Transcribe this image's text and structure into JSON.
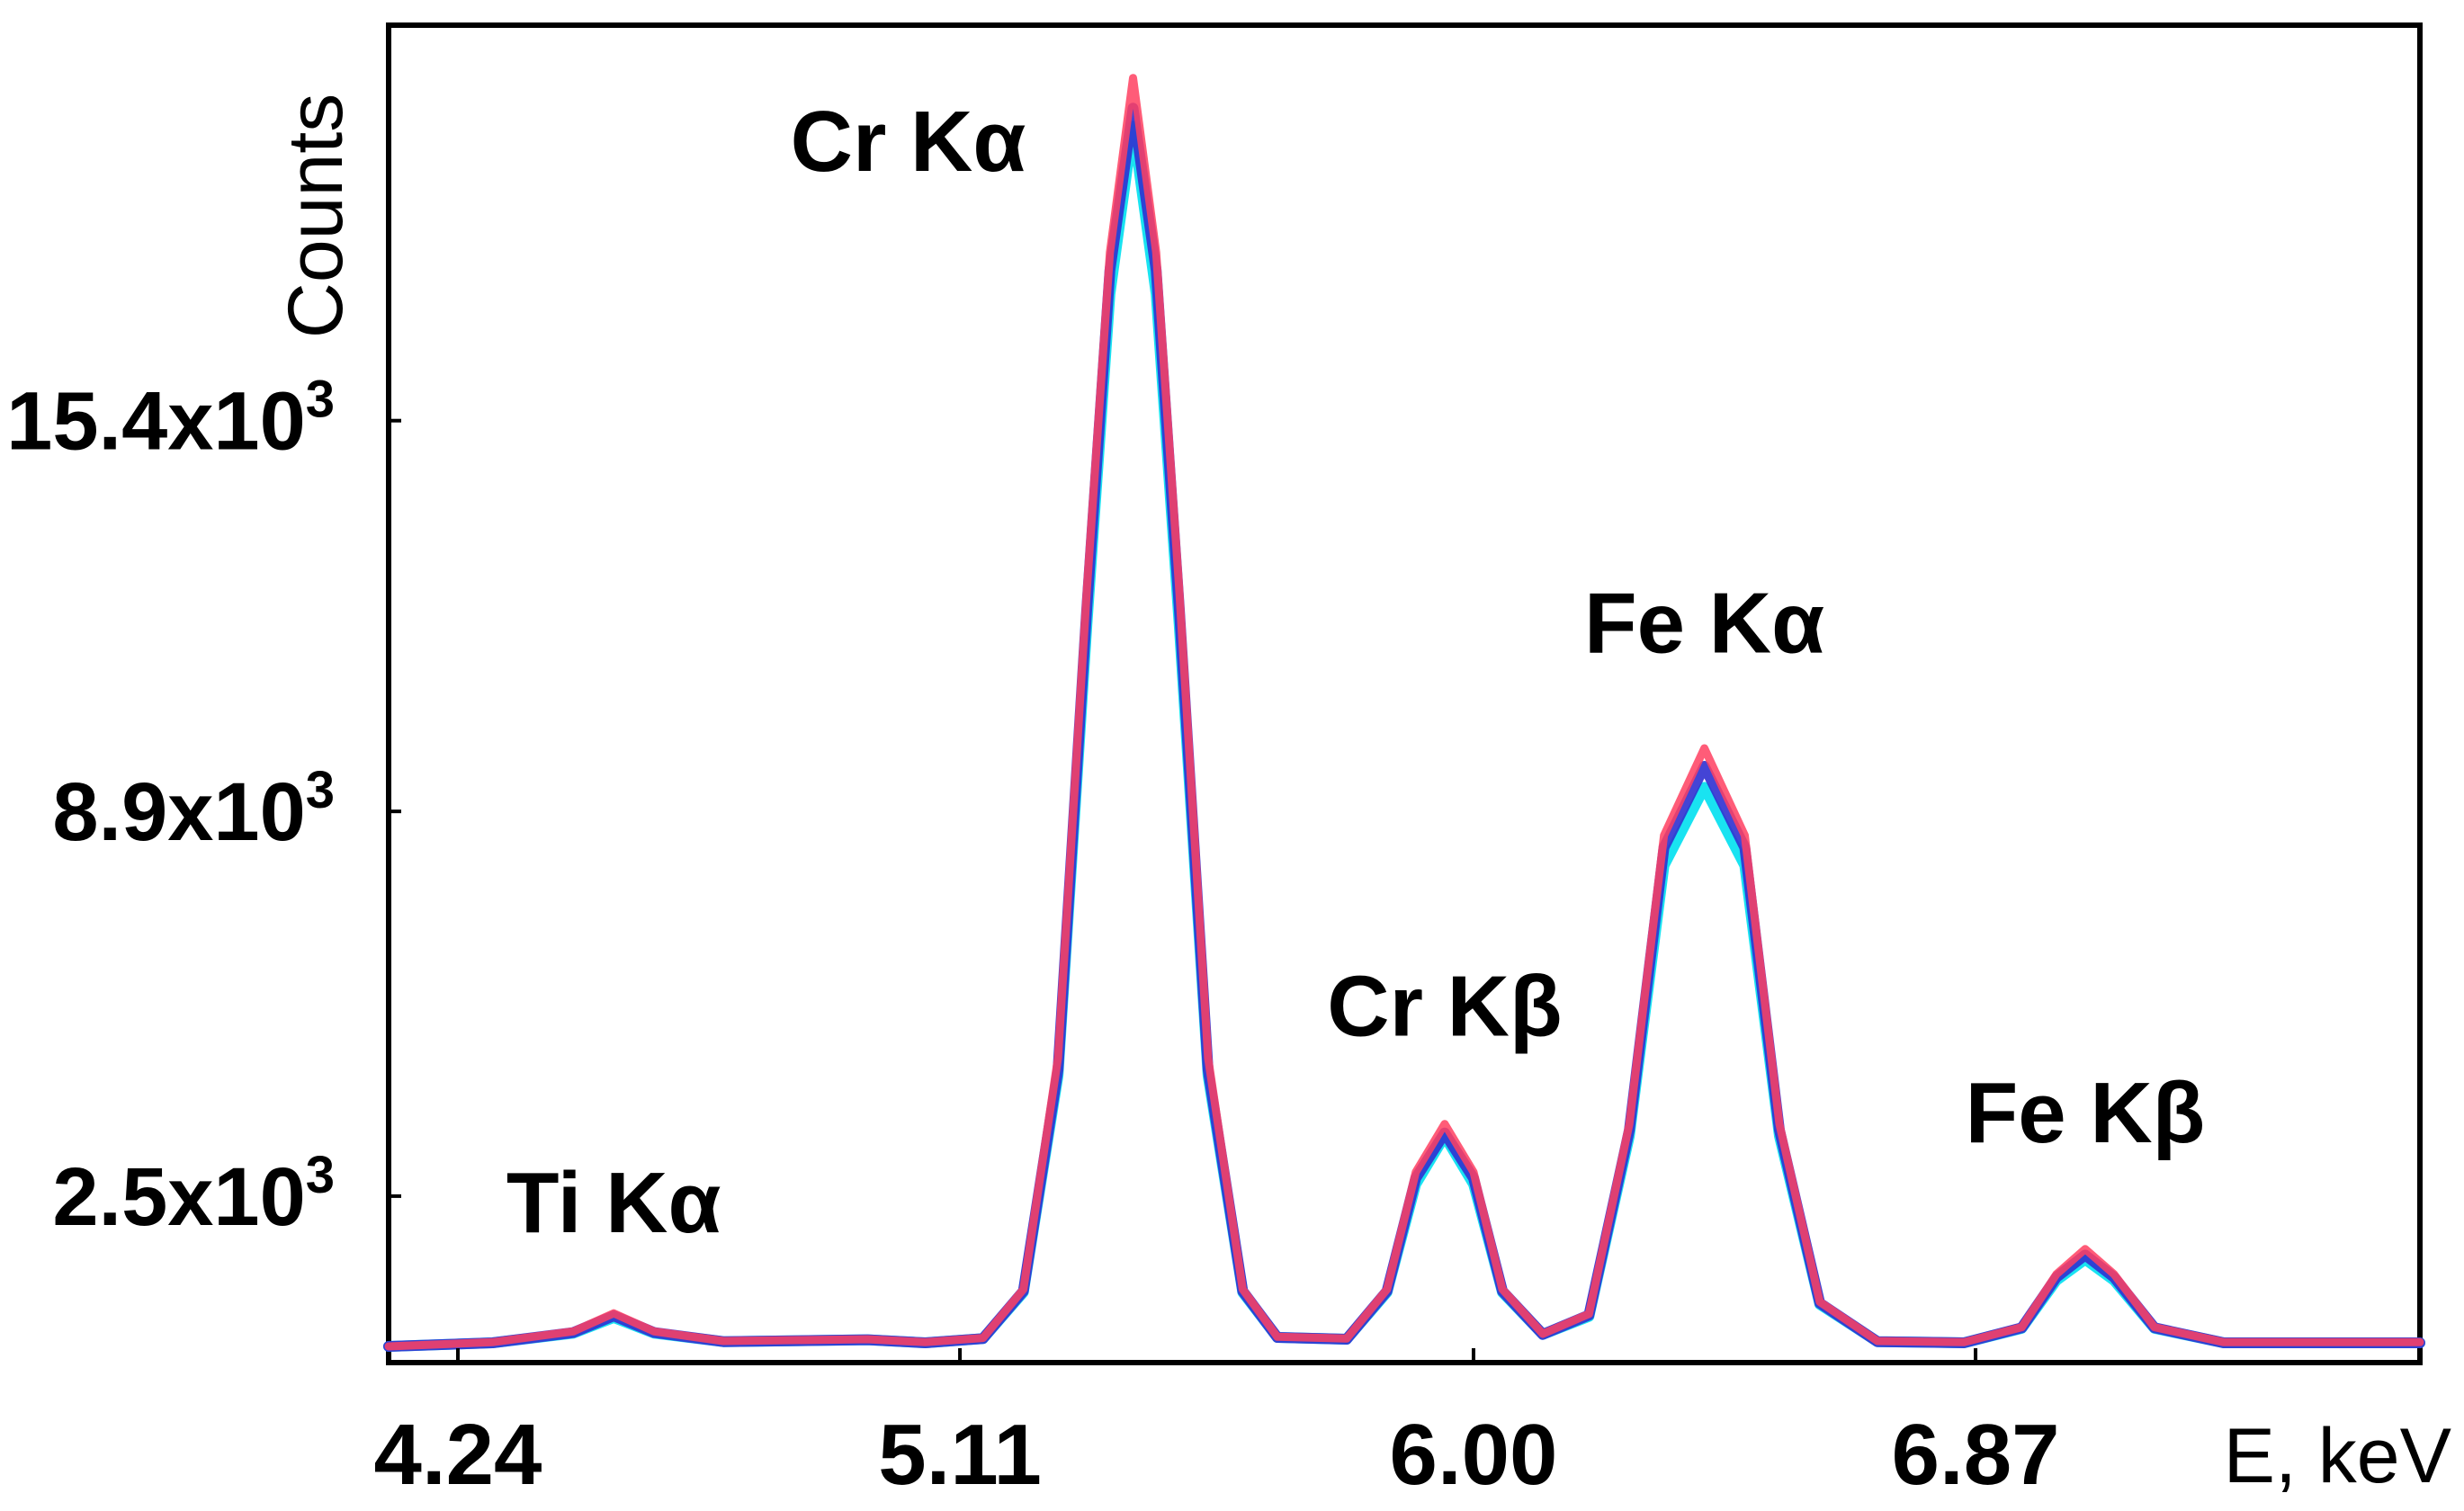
{
  "chart_data": {
    "type": "line",
    "xlabel": "E, keV",
    "ylabel": "Counts",
    "xlim": [
      4.12,
      7.64
    ],
    "ylim": [
      0,
      21500
    ],
    "xticks": [
      {
        "value": 4.24,
        "label": "4.24"
      },
      {
        "value": 5.11,
        "label": "5.11"
      },
      {
        "value": 6.0,
        "label": "6.00"
      },
      {
        "value": 6.87,
        "label": "6.87"
      }
    ],
    "yticks": [
      {
        "value": 2500,
        "mantissa": "2.5x10",
        "exp": "3"
      },
      {
        "value": 8900,
        "mantissa": "8.9x10",
        "exp": "3"
      },
      {
        "value": 15400,
        "mantissa": "15.4x10",
        "exp": "3"
      }
    ],
    "peaks": [
      {
        "label": "Ti Kα",
        "energy": 4.51,
        "counts": 550
      },
      {
        "label": "Cr Kα",
        "energy": 5.41,
        "counts": 20700
      },
      {
        "label": "Cr Kβ",
        "energy": 5.95,
        "counts": 3600
      },
      {
        "label": "Fe Kα",
        "energy": 6.4,
        "counts": 9900
      },
      {
        "label": "Fe Kβ",
        "energy": 7.06,
        "counts": 1600
      }
    ],
    "series": [
      {
        "color": "#00e0f0",
        "values": [
          [
            4.12,
            0
          ],
          [
            4.3,
            60
          ],
          [
            4.44,
            220
          ],
          [
            4.51,
            480
          ],
          [
            4.58,
            220
          ],
          [
            4.7,
            80
          ],
          [
            4.95,
            110
          ],
          [
            5.05,
            60
          ],
          [
            5.15,
            130
          ],
          [
            5.22,
            900
          ],
          [
            5.28,
            4500
          ],
          [
            5.33,
            12000
          ],
          [
            5.37,
            17500
          ],
          [
            5.41,
            20300
          ],
          [
            5.45,
            17500
          ],
          [
            5.49,
            12000
          ],
          [
            5.54,
            4500
          ],
          [
            5.6,
            900
          ],
          [
            5.66,
            150
          ],
          [
            5.78,
            120
          ],
          [
            5.85,
            900
          ],
          [
            5.9,
            2700
          ],
          [
            5.95,
            3500
          ],
          [
            6.0,
            2700
          ],
          [
            6.05,
            900
          ],
          [
            6.12,
            200
          ],
          [
            6.2,
            500
          ],
          [
            6.27,
            3500
          ],
          [
            6.33,
            8000
          ],
          [
            6.4,
            9300
          ],
          [
            6.47,
            8000
          ],
          [
            6.53,
            3500
          ],
          [
            6.6,
            700
          ],
          [
            6.7,
            80
          ],
          [
            6.85,
            60
          ],
          [
            6.95,
            300
          ],
          [
            7.01,
            1100
          ],
          [
            7.06,
            1450
          ],
          [
            7.11,
            1100
          ],
          [
            7.18,
            300
          ],
          [
            7.3,
            60
          ],
          [
            7.64,
            60
          ]
        ]
      },
      {
        "color": "#3030d0",
        "values": [
          [
            4.12,
            0
          ],
          [
            4.3,
            60
          ],
          [
            4.44,
            230
          ],
          [
            4.51,
            510
          ],
          [
            4.58,
            230
          ],
          [
            4.7,
            80
          ],
          [
            4.95,
            110
          ],
          [
            5.05,
            60
          ],
          [
            5.15,
            130
          ],
          [
            5.22,
            920
          ],
          [
            5.28,
            4600
          ],
          [
            5.33,
            12300
          ],
          [
            5.37,
            17900
          ],
          [
            5.41,
            20600
          ],
          [
            5.45,
            17900
          ],
          [
            5.49,
            12300
          ],
          [
            5.54,
            4600
          ],
          [
            5.6,
            920
          ],
          [
            5.66,
            150
          ],
          [
            5.78,
            120
          ],
          [
            5.85,
            920
          ],
          [
            5.9,
            2800
          ],
          [
            5.95,
            3550
          ],
          [
            6.0,
            2800
          ],
          [
            6.05,
            920
          ],
          [
            6.12,
            200
          ],
          [
            6.2,
            520
          ],
          [
            6.27,
            3600
          ],
          [
            6.33,
            8300
          ],
          [
            6.4,
            9650
          ],
          [
            6.47,
            8300
          ],
          [
            6.53,
            3600
          ],
          [
            6.6,
            720
          ],
          [
            6.7,
            80
          ],
          [
            6.85,
            60
          ],
          [
            6.95,
            310
          ],
          [
            7.01,
            1150
          ],
          [
            7.06,
            1520
          ],
          [
            7.11,
            1150
          ],
          [
            7.18,
            310
          ],
          [
            7.3,
            60
          ],
          [
            7.64,
            60
          ]
        ]
      },
      {
        "color": "#ff4060",
        "values": [
          [
            4.12,
            0
          ],
          [
            4.3,
            70
          ],
          [
            4.44,
            250
          ],
          [
            4.51,
            550
          ],
          [
            4.58,
            250
          ],
          [
            4.7,
            90
          ],
          [
            4.95,
            120
          ],
          [
            5.05,
            70
          ],
          [
            5.15,
            140
          ],
          [
            5.22,
            950
          ],
          [
            5.28,
            4800
          ],
          [
            5.33,
            12600
          ],
          [
            5.37,
            18200
          ],
          [
            5.41,
            21100
          ],
          [
            5.45,
            18200
          ],
          [
            5.49,
            12600
          ],
          [
            5.54,
            4800
          ],
          [
            5.6,
            950
          ],
          [
            5.66,
            160
          ],
          [
            5.78,
            130
          ],
          [
            5.85,
            950
          ],
          [
            5.9,
            2900
          ],
          [
            5.95,
            3700
          ],
          [
            6.0,
            2900
          ],
          [
            6.05,
            950
          ],
          [
            6.12,
            210
          ],
          [
            6.2,
            540
          ],
          [
            6.27,
            3700
          ],
          [
            6.33,
            8500
          ],
          [
            6.4,
            9950
          ],
          [
            6.47,
            8500
          ],
          [
            6.53,
            3700
          ],
          [
            6.6,
            740
          ],
          [
            6.7,
            90
          ],
          [
            6.85,
            70
          ],
          [
            6.95,
            320
          ],
          [
            7.01,
            1200
          ],
          [
            7.06,
            1620
          ],
          [
            7.11,
            1200
          ],
          [
            7.18,
            320
          ],
          [
            7.3,
            70
          ],
          [
            7.64,
            70
          ]
        ]
      }
    ]
  }
}
